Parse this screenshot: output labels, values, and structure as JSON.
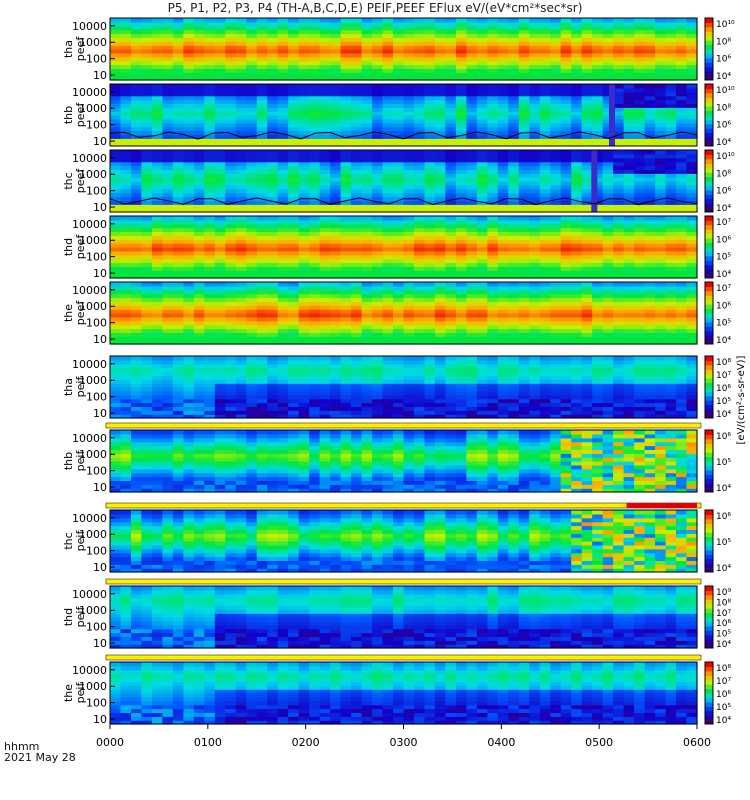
{
  "title": "P5, P1, P2, P3, P4 (TH-A,B,C,D,E) PEIF,PEEF EFlux eV/(eV*cm²*sec*sr)",
  "footer": {
    "time_label": "hhmm",
    "date_label": "2021 May 28"
  },
  "colorbar_unit": "[eV/(cm²-s-sr-eV)]",
  "chart_data": {
    "type": "heatmap",
    "x_ticks": [
      "0000",
      "0100",
      "0200",
      "0300",
      "0400",
      "0500",
      "0600"
    ],
    "xlim": [
      "0000",
      "0600"
    ],
    "y_scale": "log",
    "ylim": [
      5,
      30000
    ],
    "y_ticks": [
      "10",
      "100",
      "1000",
      "10000"
    ],
    "panels": [
      {
        "label": [
          "tha",
          "peef"
        ],
        "species": "electron",
        "scheme": "hot",
        "cbar": [
          "10⁴",
          "10⁶",
          "10⁸",
          "10¹⁰"
        ]
      },
      {
        "label": [
          "thb",
          "peef"
        ],
        "species": "electron",
        "scheme": "cool",
        "gap_at": 0.85,
        "line": true,
        "cbar": [
          "10⁴",
          "10⁶",
          "10⁸",
          "10¹⁰"
        ]
      },
      {
        "label": [
          "thc",
          "peef"
        ],
        "species": "electron",
        "scheme": "cool",
        "gap_at": 0.82,
        "line": true,
        "cbar": [
          "10⁴",
          "10⁶",
          "10⁸",
          "10¹⁰"
        ]
      },
      {
        "label": [
          "thd",
          "peef"
        ],
        "species": "electron",
        "scheme": "hot",
        "cbar": [
          "10⁴",
          "10⁵",
          "10⁶",
          "10⁷"
        ]
      },
      {
        "label": [
          "the",
          "peef"
        ],
        "species": "electron",
        "scheme": "hot",
        "cbar": [
          "10⁴",
          "10⁵",
          "10⁶",
          "10⁷"
        ]
      },
      {
        "label": [
          "tha",
          "peif"
        ],
        "species": "ion",
        "scheme": "ionlow",
        "cbar": [
          "10⁴",
          "10⁵",
          "10⁶",
          "10⁷",
          "10⁸"
        ]
      },
      {
        "label": [
          "thb",
          "peif"
        ],
        "species": "ion",
        "scheme": "ionhigh",
        "noisy_from": 0.76,
        "cbar": [
          "10⁴",
          "10⁵",
          "10⁶"
        ]
      },
      {
        "label": [
          "thc",
          "peif"
        ],
        "species": "ion",
        "scheme": "ionhigh",
        "noisy_from": 0.77,
        "cbar": [
          "10⁴",
          "10⁵",
          "10⁶"
        ]
      },
      {
        "label": [
          "thd",
          "peif"
        ],
        "species": "ion",
        "scheme": "ionlow",
        "cbar": [
          "10⁴",
          "10⁵",
          "10⁶",
          "10⁷",
          "10⁸",
          "10⁹"
        ]
      },
      {
        "label": [
          "the",
          "peif"
        ],
        "species": "ion",
        "scheme": "ionlow",
        "cbar": [
          "10⁴",
          "10⁵",
          "10⁶",
          "10⁷",
          "10⁸"
        ]
      }
    ]
  }
}
